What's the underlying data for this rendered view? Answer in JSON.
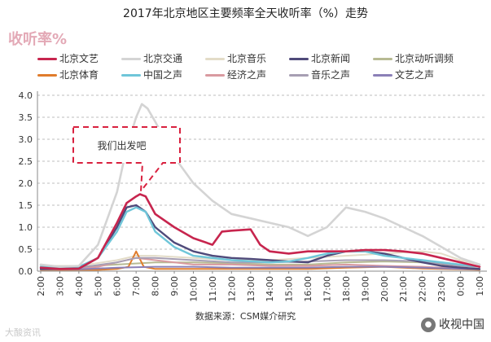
{
  "chart_data": {
    "type": "line",
    "title": "2017年北京地区主要频率全天收听率（%）走势",
    "ylabel": "收听率%",
    "xlabel": "",
    "ylim": [
      0,
      4.0
    ],
    "yticks": [
      "0.0",
      "0.5",
      "1.0",
      "1.5",
      "2.0",
      "2.5",
      "3.0",
      "3.5",
      "4.0"
    ],
    "x": [
      "2:00",
      "3:00",
      "4:00",
      "5:00",
      "6:00",
      "7:00",
      "8:00",
      "9:00",
      "10:00",
      "11:00",
      "12:00",
      "13:00",
      "14:00",
      "15:00",
      "16:00",
      "17:00",
      "18:00",
      "19:00",
      "20:00",
      "21:00",
      "22:00",
      "23:00",
      "0:00",
      "1:00"
    ],
    "x_hours": [
      2,
      3,
      4,
      5,
      6,
      7,
      8,
      9,
      10,
      11,
      12,
      13,
      14,
      15,
      16,
      17,
      18,
      19,
      20,
      21,
      22,
      23,
      24,
      25
    ],
    "legend_position": "top",
    "series": [
      {
        "name": "北京文艺",
        "color": "#c7254e",
        "width": 2.6,
        "points": [
          [
            2,
            0.08
          ],
          [
            3,
            0.05
          ],
          [
            4,
            0.06
          ],
          [
            5,
            0.3
          ],
          [
            5.5,
            0.7
          ],
          [
            6,
            1.1
          ],
          [
            6.5,
            1.55
          ],
          [
            7,
            1.7
          ],
          [
            7.2,
            1.75
          ],
          [
            7.5,
            1.7
          ],
          [
            8,
            1.3
          ],
          [
            9,
            1.0
          ],
          [
            10,
            0.75
          ],
          [
            11,
            0.6
          ],
          [
            11.5,
            0.9
          ],
          [
            12,
            0.92
          ],
          [
            13,
            0.95
          ],
          [
            13.5,
            0.6
          ],
          [
            14,
            0.45
          ],
          [
            15,
            0.4
          ],
          [
            16,
            0.45
          ],
          [
            17,
            0.45
          ],
          [
            18,
            0.45
          ],
          [
            19,
            0.48
          ],
          [
            20,
            0.48
          ],
          [
            21,
            0.45
          ],
          [
            22,
            0.4
          ],
          [
            23,
            0.3
          ],
          [
            24,
            0.2
          ],
          [
            25,
            0.1
          ]
        ]
      },
      {
        "name": "北京交通",
        "color": "#d4d4d4",
        "width": 2.6,
        "points": [
          [
            2,
            0.15
          ],
          [
            3,
            0.1
          ],
          [
            4,
            0.12
          ],
          [
            5,
            0.6
          ],
          [
            6,
            1.8
          ],
          [
            6.5,
            2.8
          ],
          [
            7,
            3.5
          ],
          [
            7.3,
            3.8
          ],
          [
            7.6,
            3.7
          ],
          [
            8,
            3.4
          ],
          [
            9,
            2.6
          ],
          [
            10,
            2.0
          ],
          [
            11,
            1.6
          ],
          [
            12,
            1.3
          ],
          [
            13,
            1.2
          ],
          [
            14,
            1.1
          ],
          [
            15,
            1.0
          ],
          [
            16,
            0.8
          ],
          [
            17,
            1.0
          ],
          [
            18,
            1.45
          ],
          [
            19,
            1.35
          ],
          [
            20,
            1.2
          ],
          [
            21,
            1.0
          ],
          [
            22,
            0.8
          ],
          [
            23,
            0.55
          ],
          [
            24,
            0.3
          ],
          [
            25,
            0.15
          ]
        ]
      },
      {
        "name": "北京音乐",
        "color": "#e3dcc8",
        "width": 2,
        "points": [
          [
            2,
            0.12
          ],
          [
            4,
            0.12
          ],
          [
            6,
            0.25
          ],
          [
            7,
            0.35
          ],
          [
            8,
            0.35
          ],
          [
            10,
            0.3
          ],
          [
            12,
            0.25
          ],
          [
            14,
            0.25
          ],
          [
            16,
            0.3
          ],
          [
            18,
            0.35
          ],
          [
            20,
            0.4
          ],
          [
            22,
            0.45
          ],
          [
            23,
            0.4
          ],
          [
            24,
            0.25
          ],
          [
            25,
            0.15
          ]
        ]
      },
      {
        "name": "北京新闻",
        "color": "#4f4a7a",
        "width": 2.4,
        "points": [
          [
            2,
            0.05
          ],
          [
            4,
            0.06
          ],
          [
            5,
            0.3
          ],
          [
            6,
            1.0
          ],
          [
            6.5,
            1.45
          ],
          [
            7,
            1.5
          ],
          [
            7.5,
            1.35
          ],
          [
            8,
            1.0
          ],
          [
            9,
            0.65
          ],
          [
            10,
            0.45
          ],
          [
            11,
            0.35
          ],
          [
            12,
            0.3
          ],
          [
            13,
            0.28
          ],
          [
            14,
            0.25
          ],
          [
            15,
            0.22
          ],
          [
            16,
            0.2
          ],
          [
            17,
            0.35
          ],
          [
            18,
            0.45
          ],
          [
            19,
            0.45
          ],
          [
            20,
            0.4
          ],
          [
            21,
            0.3
          ],
          [
            22,
            0.2
          ],
          [
            23,
            0.12
          ],
          [
            24,
            0.08
          ],
          [
            25,
            0.05
          ]
        ]
      },
      {
        "name": "北京动听调频",
        "color": "#b7ba93",
        "width": 2,
        "points": [
          [
            2,
            0.1
          ],
          [
            4,
            0.1
          ],
          [
            6,
            0.15
          ],
          [
            8,
            0.2
          ],
          [
            10,
            0.2
          ],
          [
            12,
            0.18
          ],
          [
            14,
            0.15
          ],
          [
            16,
            0.15
          ],
          [
            18,
            0.2
          ],
          [
            20,
            0.22
          ],
          [
            22,
            0.2
          ],
          [
            24,
            0.12
          ],
          [
            25,
            0.1
          ]
        ]
      },
      {
        "name": "北京体育",
        "color": "#e07c2c",
        "width": 2,
        "points": [
          [
            2,
            0.03
          ],
          [
            5,
            0.03
          ],
          [
            6,
            0.05
          ],
          [
            6.6,
            0.1
          ],
          [
            7,
            0.45
          ],
          [
            7.4,
            0.1
          ],
          [
            8,
            0.05
          ],
          [
            12,
            0.05
          ],
          [
            16,
            0.05
          ],
          [
            18,
            0.08
          ],
          [
            20,
            0.1
          ],
          [
            22,
            0.06
          ],
          [
            24,
            0.04
          ],
          [
            25,
            0.03
          ]
        ]
      },
      {
        "name": "中国之声",
        "color": "#6fc6d9",
        "width": 2.4,
        "points": [
          [
            2,
            0.1
          ],
          [
            4,
            0.1
          ],
          [
            5,
            0.3
          ],
          [
            6,
            0.9
          ],
          [
            6.5,
            1.35
          ],
          [
            7,
            1.45
          ],
          [
            7.5,
            1.35
          ],
          [
            8,
            0.9
          ],
          [
            9,
            0.55
          ],
          [
            10,
            0.35
          ],
          [
            12,
            0.25
          ],
          [
            14,
            0.2
          ],
          [
            15,
            0.22
          ],
          [
            16,
            0.3
          ],
          [
            17,
            0.4
          ],
          [
            18,
            0.45
          ],
          [
            19,
            0.45
          ],
          [
            20,
            0.35
          ],
          [
            21,
            0.3
          ],
          [
            22,
            0.25
          ],
          [
            24,
            0.15
          ],
          [
            25,
            0.1
          ]
        ]
      },
      {
        "name": "经济之声",
        "color": "#d99aa0",
        "width": 2,
        "points": [
          [
            2,
            0.05
          ],
          [
            4,
            0.05
          ],
          [
            5,
            0.1
          ],
          [
            6,
            0.2
          ],
          [
            7,
            0.3
          ],
          [
            8,
            0.25
          ],
          [
            10,
            0.15
          ],
          [
            12,
            0.15
          ],
          [
            14,
            0.12
          ],
          [
            16,
            0.12
          ],
          [
            18,
            0.15
          ],
          [
            20,
            0.12
          ],
          [
            22,
            0.1
          ],
          [
            24,
            0.06
          ],
          [
            25,
            0.05
          ]
        ]
      },
      {
        "name": "音乐之声",
        "color": "#a79fb3",
        "width": 2,
        "points": [
          [
            2,
            0.08
          ],
          [
            4,
            0.08
          ],
          [
            6,
            0.2
          ],
          [
            7,
            0.3
          ],
          [
            8,
            0.3
          ],
          [
            10,
            0.25
          ],
          [
            12,
            0.2
          ],
          [
            14,
            0.2
          ],
          [
            16,
            0.22
          ],
          [
            18,
            0.25
          ],
          [
            20,
            0.25
          ],
          [
            22,
            0.22
          ],
          [
            24,
            0.12
          ],
          [
            25,
            0.1
          ]
        ]
      },
      {
        "name": "文艺之声",
        "color": "#8b80b7",
        "width": 2,
        "points": [
          [
            2,
            0.04
          ],
          [
            4,
            0.04
          ],
          [
            6,
            0.08
          ],
          [
            8,
            0.1
          ],
          [
            10,
            0.1
          ],
          [
            12,
            0.08
          ],
          [
            14,
            0.08
          ],
          [
            16,
            0.08
          ],
          [
            18,
            0.1
          ],
          [
            20,
            0.1
          ],
          [
            22,
            0.08
          ],
          [
            24,
            0.05
          ],
          [
            25,
            0.04
          ]
        ]
      }
    ],
    "annotation": "我们出发吧"
  },
  "source_note": "数据来源：CSM媒介研究",
  "watermark_left": "大酸资讯",
  "watermark_right": "收视中国",
  "watermark_icon": "wechat-icon"
}
